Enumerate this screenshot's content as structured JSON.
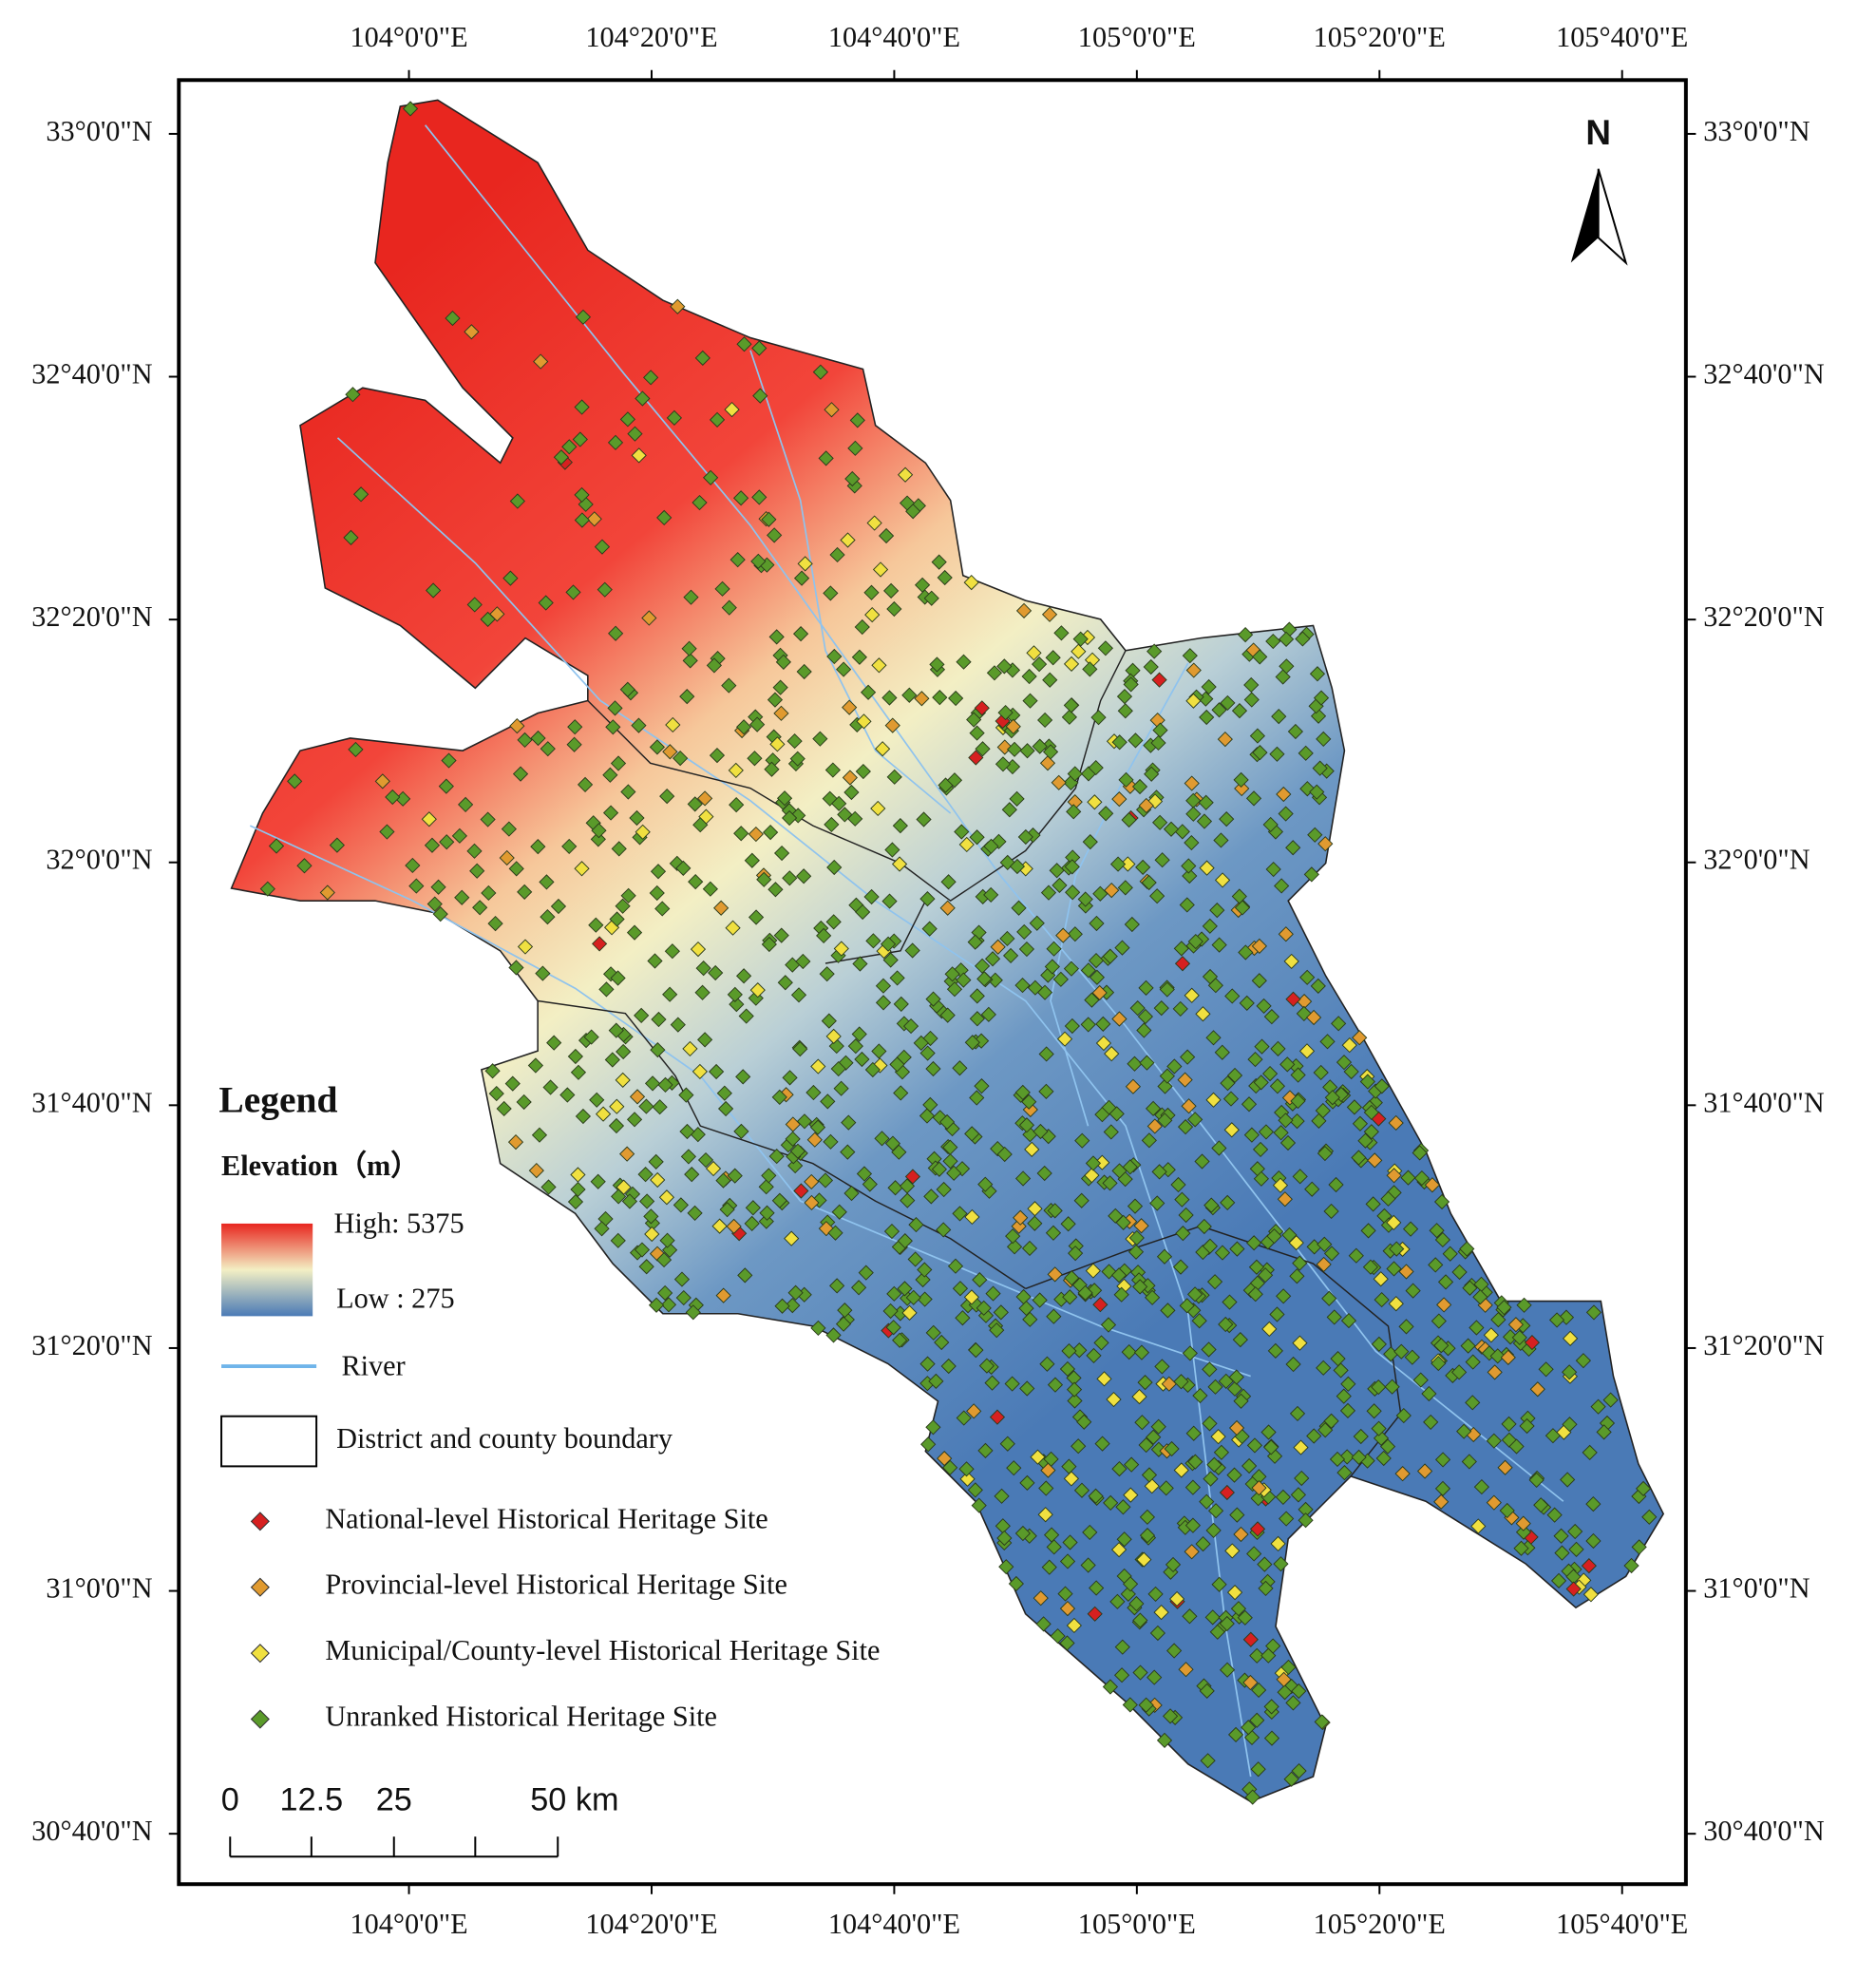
{
  "north": "N",
  "lon_labels": [
    "104°0'0\"E",
    "104°20'0\"E",
    "104°40'0\"E",
    "105°0'0\"E",
    "105°20'0\"E",
    "105°40'0\"E"
  ],
  "lat_labels": [
    "33°0'0\"N",
    "32°40'0\"N",
    "32°20'0\"N",
    "32°0'0\"N",
    "31°40'0\"N",
    "31°20'0\"N",
    "31°0'0\"N",
    "30°40'0\"N"
  ],
  "legend": {
    "title": "Legend",
    "elevation_title": "Elevation（m）",
    "high": "High:  5375",
    "low": "Low  :   275",
    "river": "River",
    "boundary": "District and county boundary",
    "sites": [
      "National-level Historical Heritage Site",
      "Provincial-level Historical Heritage Site",
      "Municipal/County-level Historical Heritage Site",
      "Unranked Historical Heritage Site"
    ]
  },
  "scale_bar": {
    "labels": [
      "0",
      "12.5",
      "25",
      "50 km"
    ]
  }
}
